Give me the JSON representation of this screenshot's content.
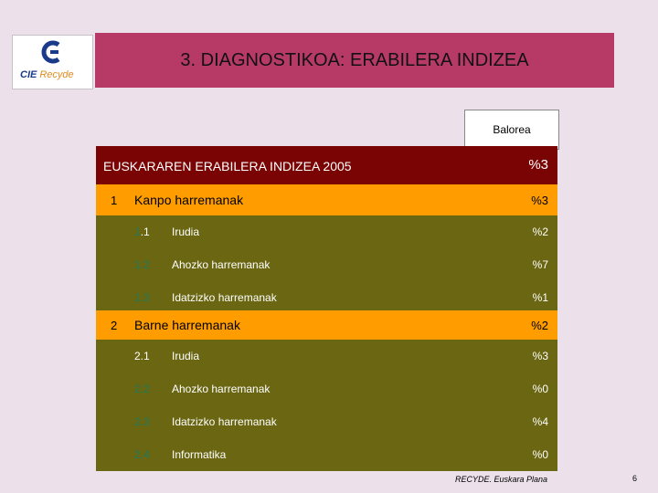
{
  "logo": {
    "name": "CIE",
    "subname": "Recyde",
    "icon": "cie-logo-icon"
  },
  "title": "3. DIAGNOSTIKOA: ERABILERA INDIZEA",
  "balorea_label": "Balorea",
  "header": {
    "label": "EUSKARAREN ERABILERA INDIZEA  2005",
    "value": "%3"
  },
  "sections": [
    {
      "num": "1",
      "label": "Kanpo harremanak",
      "value": "%3",
      "items": [
        {
          "num": "1.1",
          "label": "Irudia",
          "value": "%2"
        },
        {
          "num": "1.2",
          "label": "Ahozko harremanak",
          "value": "%7"
        },
        {
          "num": "1.3",
          "label": "Idatzizko harremanak",
          "value": "%1"
        }
      ]
    },
    {
      "num": "2",
      "label": "Barne harremanak",
      "value": "%2",
      "items": [
        {
          "num": "2.1",
          "label": "Irudia",
          "value": "%3"
        },
        {
          "num": "2.2",
          "label": "Ahozko harremanak",
          "value": "%0"
        },
        {
          "num": "2.3",
          "label": "Idatzizko harremanak",
          "value": "%4"
        },
        {
          "num": "2.4",
          "label": "Informatika",
          "value": "%0"
        }
      ]
    }
  ],
  "colors": {
    "title_bar": "#b73a66",
    "header": "#7a0303",
    "category": "#ff9c00",
    "subrow": "#6a6612",
    "background": "#ece1ea"
  },
  "footer": "RECYDE. Euskara Plana",
  "page_number": "6"
}
